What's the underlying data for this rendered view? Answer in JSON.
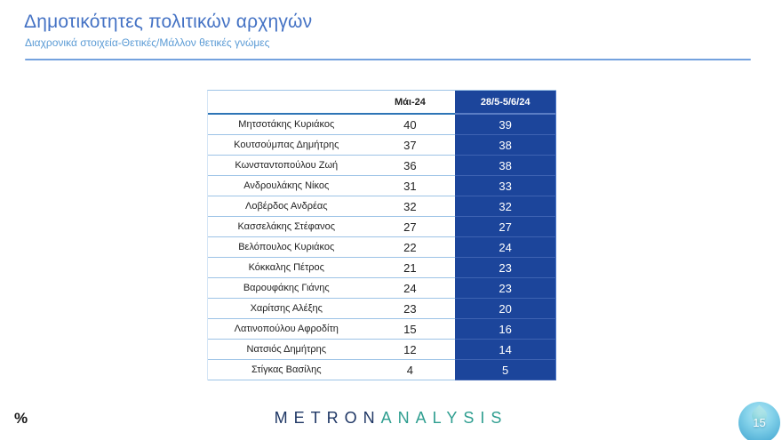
{
  "header": {
    "title": "Δημοτικότητες πολιτικών αρχηγών",
    "subtitle": "Διαχρονικά στοιχεία-Θετικές/Μάλλον θετικές γνώμες"
  },
  "chart_data": {
    "type": "table",
    "title": "Δημοτικότητες πολιτικών αρχηγών",
    "columns": [
      "",
      "Μάι-24",
      "28/5-5/6/24"
    ],
    "rows": [
      {
        "name": "Μητσοτάκης Κυριάκος",
        "may": 40,
        "jun": 39
      },
      {
        "name": "Κουτσούμπας Δημήτρης",
        "may": 37,
        "jun": 38
      },
      {
        "name": "Κωνσταντοπούλου Ζωή",
        "may": 36,
        "jun": 38
      },
      {
        "name": "Ανδρουλάκης Νίκος",
        "may": 31,
        "jun": 33
      },
      {
        "name": "Λοβέρδος Ανδρέας",
        "may": 32,
        "jun": 32
      },
      {
        "name": "Κασσελάκης Στέφανος",
        "may": 27,
        "jun": 27
      },
      {
        "name": "Βελόπουλος Κυριάκος",
        "may": 22,
        "jun": 24
      },
      {
        "name": "Κόκκαλης Πέτρος",
        "may": 21,
        "jun": 23
      },
      {
        "name": "Βαρουφάκης Γιάνης",
        "may": 24,
        "jun": 23
      },
      {
        "name": "Χαρίτσης Αλέξης",
        "may": 23,
        "jun": 20
      },
      {
        "name": "Λατινοπούλου Αφροδίτη",
        "may": 15,
        "jun": 16
      },
      {
        "name": "Νατσιός Δημήτρης",
        "may": 12,
        "jun": 14
      },
      {
        "name": "Στίγκας Βασίλης",
        "may": 4,
        "jun": 5
      }
    ]
  },
  "footer": {
    "percent_label": "%",
    "page_number": "15",
    "logo": {
      "metron": "METRON",
      "analysis": "ANALYSIS"
    }
  },
  "colors": {
    "title_blue": "#4472C4",
    "subtitle_blue": "#5B9BD5",
    "table_accent_blue": "#1C459B",
    "row_separator_blue": "#9DC3E6",
    "header_rule_blue": "#2E75B6",
    "logo_navy": "#1F3765",
    "logo_teal": "#2F9E90",
    "badge_light_blue": "#6EC3E2"
  }
}
